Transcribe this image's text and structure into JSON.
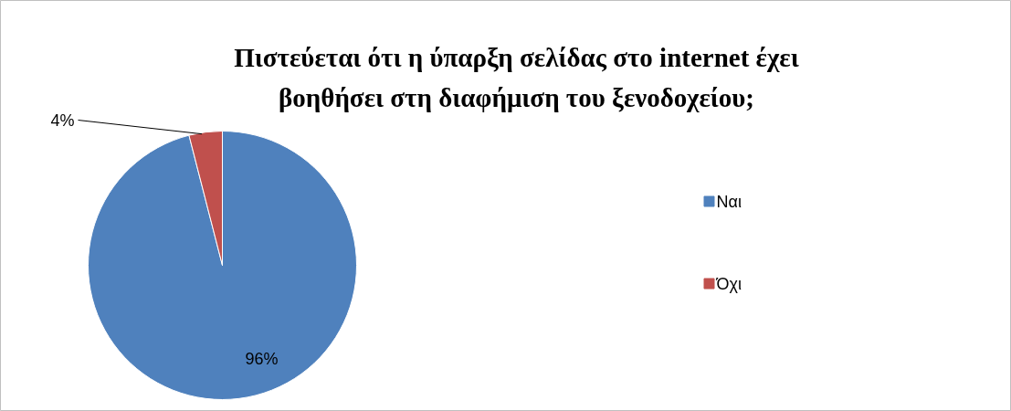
{
  "chart_data": {
    "type": "pie",
    "title": "Πιστεύεται ότι η ύπαρξη σελίδας στο internet έχει\nβοηθήσει στη διαφήμιση του ξενοδοχείου;",
    "categories": [
      "Ναι",
      "Όχι"
    ],
    "values": [
      96,
      4
    ],
    "colors": [
      "#4f81bd",
      "#c0504d"
    ],
    "value_labels": [
      "96%",
      "4%"
    ],
    "legend": "right"
  }
}
